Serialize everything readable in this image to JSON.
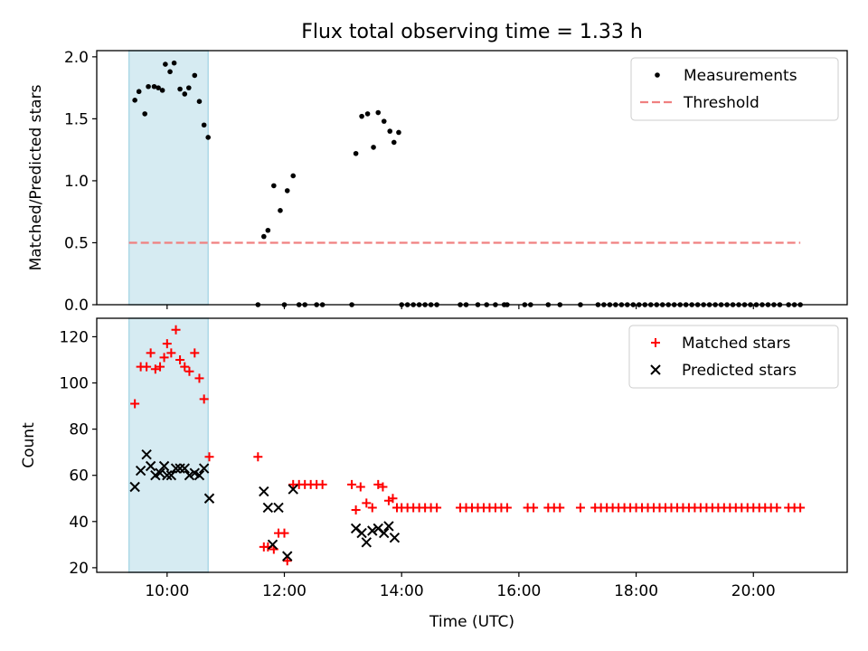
{
  "figure_title": "Flux total observing time = 1.33 h",
  "chart_data": [
    {
      "type": "scatter",
      "name": "ratio-panel",
      "ylabel": "Matched/Predicted stars",
      "xlabel": "",
      "xlim": [
        8.8,
        21.6
      ],
      "ylim": [
        0,
        2.05
      ],
      "yticks": [
        0.0,
        0.5,
        1.0,
        1.5,
        2.0
      ],
      "ytick_labels": [
        "0.0",
        "0.5",
        "1.0",
        "1.5",
        "2.0"
      ],
      "xticks": [
        10,
        12,
        14,
        16,
        18,
        20
      ],
      "highlight_span": [
        9.35,
        10.7
      ],
      "colors": {
        "measurements": "#000000",
        "threshold": "#f08080",
        "highlight": "#add8e6"
      },
      "legend_position": "top-right",
      "series": [
        {
          "name": "Measurements",
          "kind": "points",
          "points": [
            [
              9.45,
              1.65
            ],
            [
              9.52,
              1.72
            ],
            [
              9.62,
              1.54
            ],
            [
              9.68,
              1.76
            ],
            [
              9.78,
              1.76
            ],
            [
              9.85,
              1.75
            ],
            [
              9.92,
              1.73
            ],
            [
              9.97,
              1.94
            ],
            [
              10.05,
              1.88
            ],
            [
              10.12,
              1.95
            ],
            [
              10.22,
              1.74
            ],
            [
              10.3,
              1.7
            ],
            [
              10.37,
              1.75
            ],
            [
              10.47,
              1.85
            ],
            [
              10.55,
              1.64
            ],
            [
              10.63,
              1.45
            ],
            [
              10.7,
              1.35
            ],
            [
              11.55,
              0.0
            ],
            [
              11.65,
              0.55
            ],
            [
              11.72,
              0.6
            ],
            [
              11.82,
              0.96
            ],
            [
              11.93,
              0.76
            ],
            [
              12.0,
              0.0
            ],
            [
              12.05,
              0.92
            ],
            [
              12.15,
              1.04
            ],
            [
              12.25,
              0.0
            ],
            [
              12.35,
              0.0
            ],
            [
              12.55,
              0.0
            ],
            [
              12.65,
              0.0
            ],
            [
              13.15,
              0.0
            ],
            [
              13.22,
              1.22
            ],
            [
              13.32,
              1.52
            ],
            [
              13.42,
              1.54
            ],
            [
              13.52,
              1.27
            ],
            [
              13.6,
              1.55
            ],
            [
              13.7,
              1.48
            ],
            [
              13.8,
              1.4
            ],
            [
              13.87,
              1.31
            ],
            [
              13.95,
              1.39
            ],
            [
              14.0,
              0.0
            ],
            [
              14.1,
              0.0
            ],
            [
              14.2,
              0.0
            ],
            [
              14.3,
              0.0
            ],
            [
              14.4,
              0.0
            ],
            [
              14.5,
              0.0
            ],
            [
              14.6,
              0.0
            ],
            [
              15.0,
              0.0
            ],
            [
              15.1,
              0.0
            ],
            [
              15.3,
              0.0
            ],
            [
              15.45,
              0.0
            ],
            [
              15.6,
              0.0
            ],
            [
              15.75,
              0.0
            ],
            [
              15.8,
              0.0
            ],
            [
              16.1,
              0.0
            ],
            [
              16.2,
              0.0
            ],
            [
              16.5,
              0.0
            ],
            [
              16.7,
              0.0
            ],
            [
              17.05,
              0.0
            ],
            [
              17.35,
              0.0
            ],
            [
              17.45,
              0.0
            ],
            [
              17.55,
              0.0
            ],
            [
              17.65,
              0.0
            ],
            [
              17.75,
              0.0
            ],
            [
              17.85,
              0.0
            ],
            [
              17.95,
              0.0
            ],
            [
              18.05,
              0.0
            ],
            [
              18.15,
              0.0
            ],
            [
              18.25,
              0.0
            ],
            [
              18.35,
              0.0
            ],
            [
              18.45,
              0.0
            ],
            [
              18.55,
              0.0
            ],
            [
              18.65,
              0.0
            ],
            [
              18.75,
              0.0
            ],
            [
              18.85,
              0.0
            ],
            [
              18.95,
              0.0
            ],
            [
              19.05,
              0.0
            ],
            [
              19.15,
              0.0
            ],
            [
              19.25,
              0.0
            ],
            [
              19.35,
              0.0
            ],
            [
              19.45,
              0.0
            ],
            [
              19.55,
              0.0
            ],
            [
              19.65,
              0.0
            ],
            [
              19.75,
              0.0
            ],
            [
              19.85,
              0.0
            ],
            [
              19.95,
              0.0
            ],
            [
              20.05,
              0.0
            ],
            [
              20.15,
              0.0
            ],
            [
              20.25,
              0.0
            ],
            [
              20.35,
              0.0
            ],
            [
              20.45,
              0.0
            ],
            [
              20.6,
              0.0
            ],
            [
              20.7,
              0.0
            ],
            [
              20.8,
              0.0
            ]
          ]
        },
        {
          "name": "Threshold",
          "kind": "hline",
          "y": 0.5,
          "x_range": [
            9.35,
            20.8
          ]
        }
      ]
    },
    {
      "type": "scatter",
      "name": "count-panel",
      "ylabel": "Count",
      "xlabel": "Time (UTC)",
      "xlim": [
        8.8,
        21.6
      ],
      "ylim": [
        18,
        128
      ],
      "yticks": [
        20,
        40,
        60,
        80,
        100,
        120
      ],
      "ytick_labels": [
        "20",
        "40",
        "60",
        "80",
        "100",
        "120"
      ],
      "xticks": [
        10,
        12,
        14,
        16,
        18,
        20
      ],
      "xtick_labels": [
        "10:00",
        "12:00",
        "14:00",
        "16:00",
        "18:00",
        "20:00"
      ],
      "highlight_span": [
        9.35,
        10.7
      ],
      "colors": {
        "matched": "#ff0000",
        "predicted": "#000000",
        "highlight": "#add8e6"
      },
      "legend_position": "top-right",
      "series": [
        {
          "name": "Matched stars",
          "marker": "plus",
          "points": [
            [
              9.45,
              91
            ],
            [
              9.55,
              107
            ],
            [
              9.65,
              107
            ],
            [
              9.72,
              113
            ],
            [
              9.8,
              106
            ],
            [
              9.88,
              107
            ],
            [
              9.95,
              111
            ],
            [
              10.0,
              117
            ],
            [
              10.07,
              113
            ],
            [
              10.15,
              123
            ],
            [
              10.22,
              110
            ],
            [
              10.3,
              107
            ],
            [
              10.38,
              105
            ],
            [
              10.47,
              113
            ],
            [
              10.55,
              102
            ],
            [
              10.63,
              93
            ],
            [
              10.72,
              68
            ],
            [
              11.55,
              68
            ],
            [
              11.65,
              29
            ],
            [
              11.72,
              29
            ],
            [
              11.82,
              28
            ],
            [
              11.9,
              35
            ],
            [
              12.0,
              35
            ],
            [
              12.05,
              23
            ],
            [
              12.15,
              56
            ],
            [
              12.25,
              56
            ],
            [
              12.35,
              56
            ],
            [
              12.45,
              56
            ],
            [
              12.55,
              56
            ],
            [
              12.65,
              56
            ],
            [
              13.15,
              56
            ],
            [
              13.22,
              45
            ],
            [
              13.3,
              55
            ],
            [
              13.4,
              48
            ],
            [
              13.5,
              46
            ],
            [
              13.6,
              56
            ],
            [
              13.68,
              55
            ],
            [
              13.78,
              49
            ],
            [
              13.85,
              50
            ],
            [
              13.92,
              46
            ],
            [
              14.0,
              46
            ],
            [
              14.1,
              46
            ],
            [
              14.2,
              46
            ],
            [
              14.3,
              46
            ],
            [
              14.4,
              46
            ],
            [
              14.5,
              46
            ],
            [
              14.6,
              46
            ],
            [
              15.0,
              46
            ],
            [
              15.1,
              46
            ],
            [
              15.2,
              46
            ],
            [
              15.3,
              46
            ],
            [
              15.4,
              46
            ],
            [
              15.5,
              46
            ],
            [
              15.6,
              46
            ],
            [
              15.7,
              46
            ],
            [
              15.8,
              46
            ],
            [
              16.15,
              46
            ],
            [
              16.25,
              46
            ],
            [
              16.5,
              46
            ],
            [
              16.6,
              46
            ],
            [
              16.7,
              46
            ],
            [
              17.05,
              46
            ],
            [
              17.3,
              46
            ],
            [
              17.4,
              46
            ],
            [
              17.5,
              46
            ],
            [
              17.6,
              46
            ],
            [
              17.7,
              46
            ],
            [
              17.8,
              46
            ],
            [
              17.9,
              46
            ],
            [
              18.0,
              46
            ],
            [
              18.1,
              46
            ],
            [
              18.2,
              46
            ],
            [
              18.3,
              46
            ],
            [
              18.4,
              46
            ],
            [
              18.5,
              46
            ],
            [
              18.6,
              46
            ],
            [
              18.7,
              46
            ],
            [
              18.8,
              46
            ],
            [
              18.9,
              46
            ],
            [
              19.0,
              46
            ],
            [
              19.1,
              46
            ],
            [
              19.2,
              46
            ],
            [
              19.3,
              46
            ],
            [
              19.4,
              46
            ],
            [
              19.5,
              46
            ],
            [
              19.6,
              46
            ],
            [
              19.7,
              46
            ],
            [
              19.8,
              46
            ],
            [
              19.9,
              46
            ],
            [
              20.0,
              46
            ],
            [
              20.1,
              46
            ],
            [
              20.2,
              46
            ],
            [
              20.3,
              46
            ],
            [
              20.4,
              46
            ],
            [
              20.6,
              46
            ],
            [
              20.7,
              46
            ],
            [
              20.8,
              46
            ]
          ]
        },
        {
          "name": "Predicted stars",
          "marker": "x",
          "points": [
            [
              9.45,
              55
            ],
            [
              9.55,
              62
            ],
            [
              9.65,
              69
            ],
            [
              9.72,
              64
            ],
            [
              9.8,
              60
            ],
            [
              9.88,
              61
            ],
            [
              9.95,
              64
            ],
            [
              10.0,
              60
            ],
            [
              10.07,
              60
            ],
            [
              10.15,
              63
            ],
            [
              10.22,
              63
            ],
            [
              10.3,
              63
            ],
            [
              10.38,
              60
            ],
            [
              10.47,
              61
            ],
            [
              10.55,
              60
            ],
            [
              10.63,
              63
            ],
            [
              10.72,
              50
            ],
            [
              11.65,
              53
            ],
            [
              11.72,
              46
            ],
            [
              11.8,
              30
            ],
            [
              11.9,
              46
            ],
            [
              12.05,
              25
            ],
            [
              12.15,
              54
            ],
            [
              13.22,
              37
            ],
            [
              13.32,
              35
            ],
            [
              13.4,
              31
            ],
            [
              13.5,
              36
            ],
            [
              13.6,
              37
            ],
            [
              13.7,
              35
            ],
            [
              13.78,
              38
            ],
            [
              13.88,
              33
            ]
          ]
        }
      ]
    }
  ]
}
